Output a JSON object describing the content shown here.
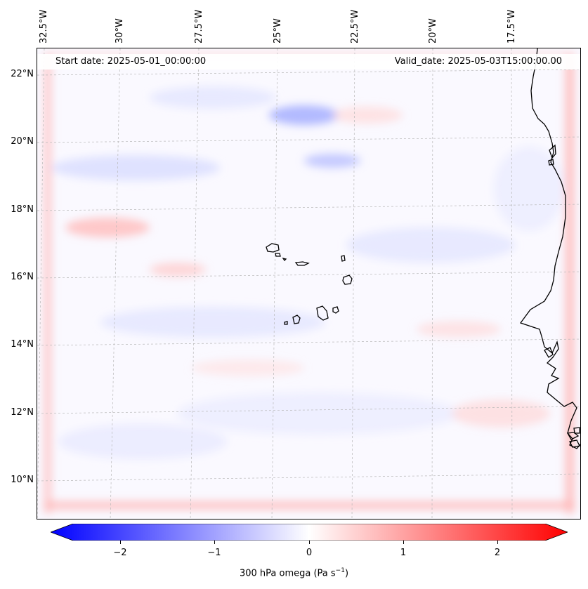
{
  "map": {
    "start_date": "Start date: 2025-05-01_00:00:00",
    "valid_date": "Valid_date: 2025-05-03T15:00:00.00",
    "lon_labels": [
      "32.5°W",
      "30°W",
      "27.5°W",
      "25°W",
      "22.5°W",
      "20°W",
      "17.5°W"
    ],
    "lat_labels": [
      "22°N",
      "20°N",
      "18°N",
      "16°N",
      "14°N",
      "12°N",
      "10°N"
    ],
    "colors": {
      "negative": "#0000ff",
      "neutral": "#ffffff",
      "positive": "#ff0000",
      "coastline": "#000000",
      "grid": "#b0b0b0"
    }
  },
  "colorbar": {
    "label_main": "300 hPa omega (Pa s",
    "label_sup": "−1",
    "label_end": ")",
    "ticks": [
      "−2",
      "−1",
      "0",
      "1",
      "2"
    ],
    "vmin": -2.75,
    "vmax": 2.75,
    "extend": "both"
  }
}
